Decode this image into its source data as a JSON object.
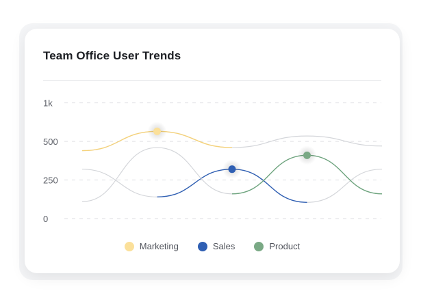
{
  "chart_data": {
    "type": "line",
    "title": "Team Office User Trends",
    "ylabel": "",
    "xlabel": "",
    "y_ticks": [
      {
        "value": 0,
        "label": "0"
      },
      {
        "value": 250,
        "label": "250"
      },
      {
        "value": 500,
        "label": "500"
      },
      {
        "value": 1000,
        "label": "1k"
      }
    ],
    "grid": true,
    "legend_position": "bottom-center",
    "x": [
      0,
      1,
      2,
      3,
      4
    ],
    "series": [
      {
        "name": "Marketing",
        "color": "#f5d27a",
        "dot_color": "#fbe09a",
        "values": [
          440,
          630,
          460,
          570,
          470
        ],
        "highlight_index": 1
      },
      {
        "name": "Sales",
        "color": "#2f5fb3",
        "dot_color": "#2f5fb3",
        "values": [
          320,
          140,
          320,
          105,
          320
        ],
        "highlight_index": 2
      },
      {
        "name": "Product",
        "color": "#6fa57f",
        "dot_color": "#7aa985",
        "values": [
          110,
          460,
          160,
          410,
          160
        ],
        "highlight_index": 3
      }
    ]
  }
}
